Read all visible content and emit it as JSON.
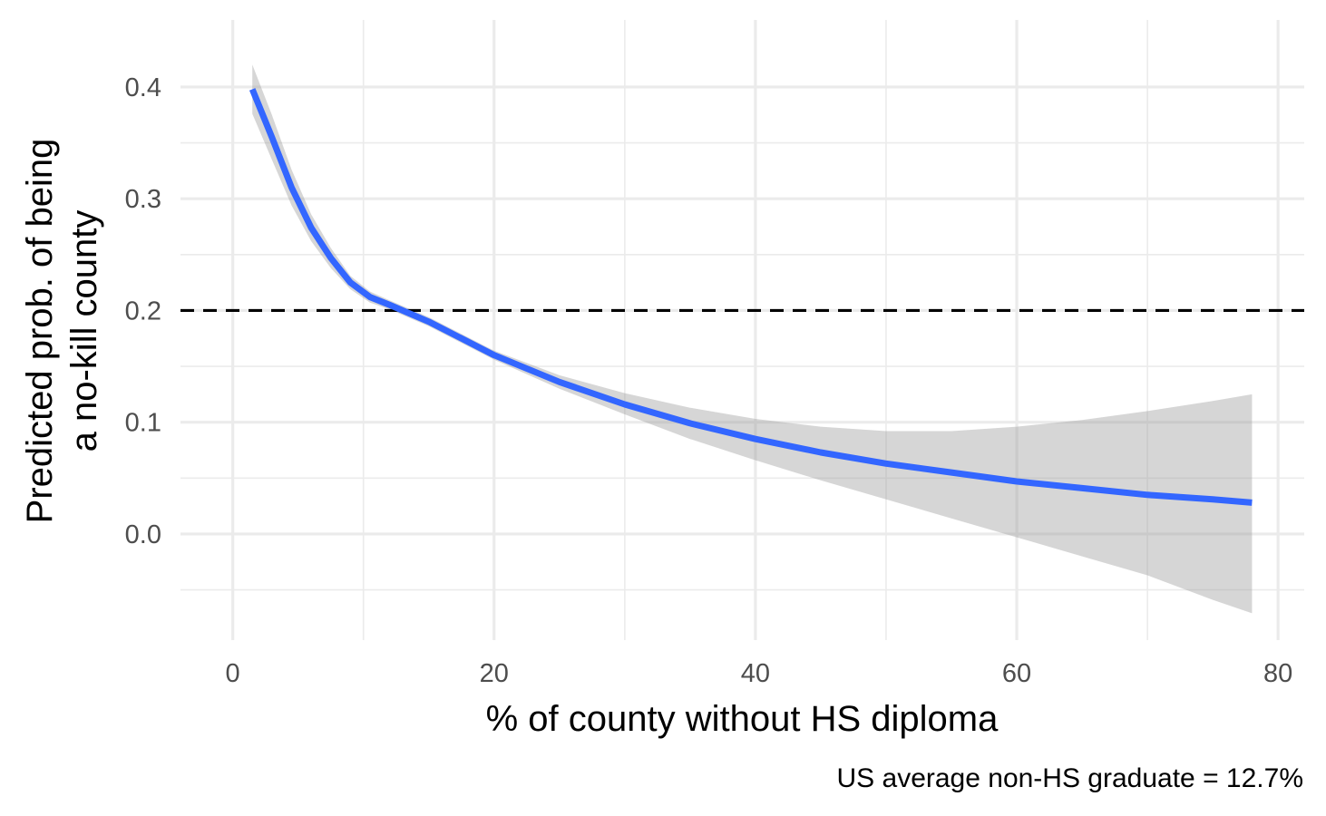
{
  "chart_data": {
    "type": "line",
    "xlabel": "% of county without HS diploma",
    "ylabel_lines": [
      "Predicted prob. of being",
      "a no-kill county"
    ],
    "caption": "US average non-HS graduate = 12.7%",
    "xlim": [
      -4,
      82
    ],
    "ylim": [
      -0.095,
      0.46
    ],
    "x_ticks": [
      0,
      20,
      40,
      60,
      80
    ],
    "x_tick_labels": [
      "0",
      "20",
      "40",
      "60",
      "80"
    ],
    "x_minor_ticks": [
      10,
      30,
      50,
      70
    ],
    "y_ticks": [
      0.0,
      0.1,
      0.2,
      0.3,
      0.4
    ],
    "y_tick_labels": [
      "0.0",
      "0.1",
      "0.2",
      "0.3",
      "0.4"
    ],
    "y_minor_ticks": [
      -0.05,
      0.05,
      0.15,
      0.25,
      0.35
    ],
    "reference_line": {
      "y": 0.2,
      "style": "dashed",
      "color": "#000000"
    },
    "grid": true,
    "series": [
      {
        "color": "#3366ff",
        "band_color": "#999999",
        "points": [
          {
            "x": 1.5,
            "y": 0.398,
            "lower": 0.376,
            "upper": 0.42
          },
          {
            "x": 3,
            "y": 0.355,
            "lower": 0.335,
            "upper": 0.375
          },
          {
            "x": 4.5,
            "y": 0.31,
            "lower": 0.294,
            "upper": 0.326
          },
          {
            "x": 6,
            "y": 0.274,
            "lower": 0.262,
            "upper": 0.286
          },
          {
            "x": 7.5,
            "y": 0.247,
            "lower": 0.238,
            "upper": 0.256
          },
          {
            "x": 9,
            "y": 0.225,
            "lower": 0.219,
            "upper": 0.231
          },
          {
            "x": 10.5,
            "y": 0.212,
            "lower": 0.207,
            "upper": 0.217
          },
          {
            "x": 12,
            "y": 0.205,
            "lower": 0.201,
            "upper": 0.209
          },
          {
            "x": 15,
            "y": 0.19,
            "lower": 0.186,
            "upper": 0.194
          },
          {
            "x": 20,
            "y": 0.16,
            "lower": 0.156,
            "upper": 0.164
          },
          {
            "x": 25,
            "y": 0.136,
            "lower": 0.13,
            "upper": 0.142
          },
          {
            "x": 30,
            "y": 0.116,
            "lower": 0.107,
            "upper": 0.126
          },
          {
            "x": 35,
            "y": 0.099,
            "lower": 0.085,
            "upper": 0.113
          },
          {
            "x": 40,
            "y": 0.085,
            "lower": 0.066,
            "upper": 0.103
          },
          {
            "x": 45,
            "y": 0.073,
            "lower": 0.048,
            "upper": 0.096
          },
          {
            "x": 50,
            "y": 0.063,
            "lower": 0.031,
            "upper": 0.092
          },
          {
            "x": 55,
            "y": 0.055,
            "lower": 0.014,
            "upper": 0.092
          },
          {
            "x": 60,
            "y": 0.047,
            "lower": -0.003,
            "upper": 0.096
          },
          {
            "x": 65,
            "y": 0.041,
            "lower": -0.02,
            "upper": 0.102
          },
          {
            "x": 70,
            "y": 0.035,
            "lower": -0.037,
            "upper": 0.11
          },
          {
            "x": 75,
            "y": 0.031,
            "lower": -0.059,
            "upper": 0.119
          },
          {
            "x": 78,
            "y": 0.028,
            "lower": -0.071,
            "upper": 0.125
          }
        ]
      }
    ]
  }
}
